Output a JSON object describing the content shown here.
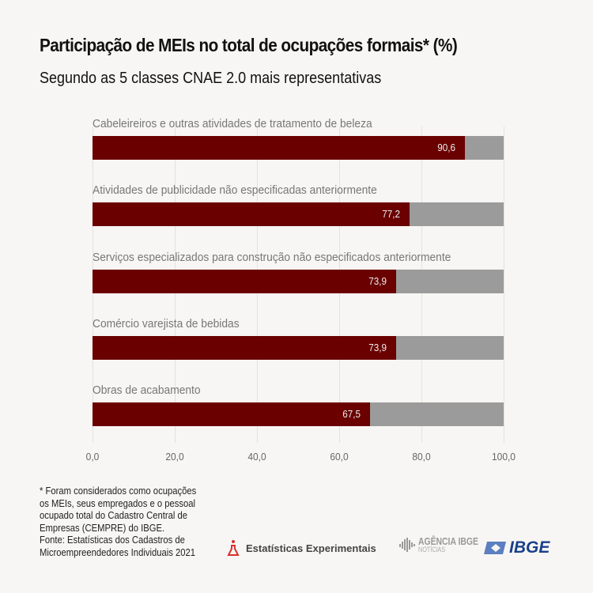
{
  "chart_data": {
    "type": "bar",
    "orientation": "horizontal",
    "stacked_to": 100,
    "title": "Participação de MEIs no total de ocupações formais* (%)",
    "subtitle": "Segundo as 5 classes CNAE 2.0 mais representativas",
    "categories": [
      "Cabeleireiros e outras atividades de tratamento de beleza",
      "Atividades de publicidade não especificadas anteriormente",
      "Serviços especializados para construção não especificados anteriormente",
      "Comércio varejista de bebidas",
      "Obras de acabamento"
    ],
    "values": [
      90.6,
      77.2,
      73.9,
      73.9,
      67.5
    ],
    "value_labels": [
      "90,6",
      "77,2",
      "73,9",
      "73,9",
      "67,5"
    ],
    "xlim": [
      0,
      100
    ],
    "ticks": [
      "0,0",
      "20,0",
      "40,0",
      "60,0",
      "80,0",
      "100,0"
    ],
    "colors": {
      "value": "#6a0000",
      "remainder": "#9b9b9b"
    },
    "grid": true
  },
  "footnote": [
    "* Foram considerados como ocupações",
    "os MEIs, seus empregados e o pessoal",
    "ocupado total do Cadastro Central de",
    "Empresas (CEMPRE) do IBGE.",
    "Fonte: Estatísticas dos Cadastros de",
    "Microempreendedores Individuais 2021"
  ],
  "logos": {
    "experimentais": "Estatísticas Experimentais",
    "agencia": "AGÊNCIA IBGE",
    "agencia_sub": "NOTÍCIAS",
    "ibge": "IBGE"
  }
}
